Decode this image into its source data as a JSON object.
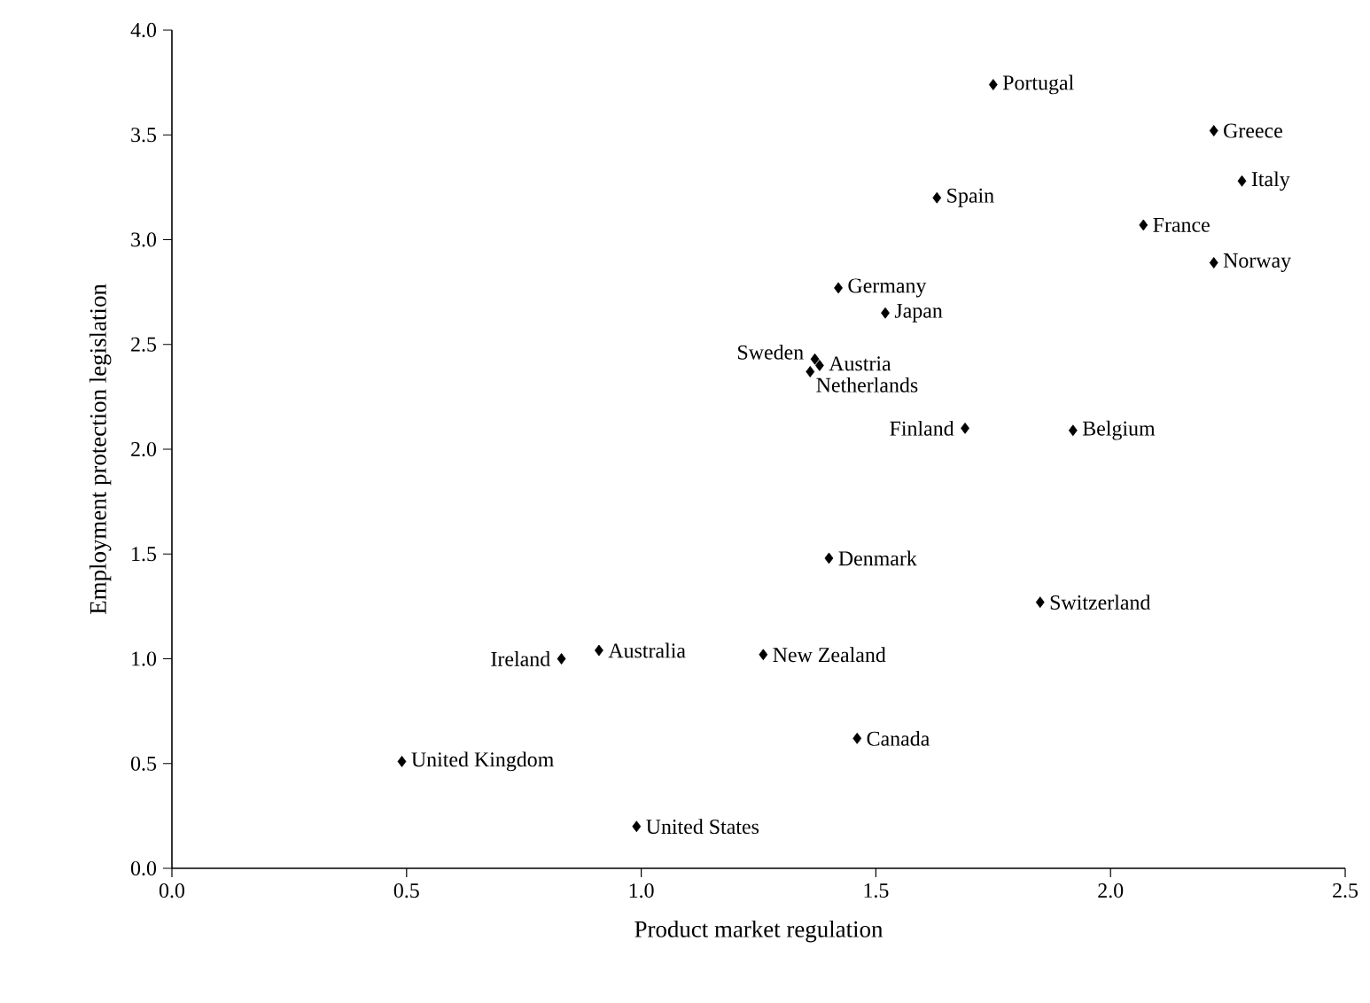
{
  "chart_data": {
    "type": "scatter",
    "xlabel": "Product market regulation",
    "ylabel": "Employment protection legislation",
    "x": [
      1.75,
      2.22,
      2.28,
      1.63,
      2.07,
      2.22,
      1.42,
      1.52,
      1.37,
      1.38,
      1.36,
      1.69,
      1.92,
      1.4,
      1.85,
      0.83,
      0.91,
      1.26,
      1.46,
      0.49,
      0.99
    ],
    "values": [
      3.74,
      3.52,
      3.28,
      3.2,
      3.07,
      2.89,
      2.77,
      2.65,
      2.43,
      2.4,
      2.37,
      2.1,
      2.09,
      1.48,
      1.27,
      1.0,
      1.04,
      1.02,
      0.62,
      0.51,
      0.2
    ],
    "color": "#000000",
    "marker": "diamond",
    "grid": false,
    "xlim": [
      0,
      2.5
    ],
    "ylim": [
      0,
      4
    ],
    "xticks": [
      {
        "value": 0,
        "label": "0.0"
      },
      0.5,
      {
        "value": 1,
        "label": "1.0"
      },
      1.5,
      {
        "value": 2,
        "label": "2.0"
      },
      2.5
    ],
    "yticks": [
      {
        "value": 0,
        "label": "0.0"
      },
      0.5,
      {
        "value": 1,
        "label": "1.0"
      },
      1.5,
      {
        "value": 2,
        "label": "2.0"
      },
      2.5,
      {
        "value": 3,
        "label": "3.0"
      },
      3.5,
      {
        "value": 4,
        "label": "4.0"
      }
    ],
    "annotations": [
      {
        "text": "Portugal",
        "x": 1.75,
        "y": 3.74
      },
      {
        "text": "Greece",
        "x": 2.22,
        "y": 3.52
      },
      {
        "text": "Italy",
        "x": 2.28,
        "y": 3.28
      },
      {
        "text": "Spain",
        "x": 1.63,
        "y": 3.2
      },
      {
        "text": "France",
        "x": 2.07,
        "y": 3.07
      },
      {
        "text": "Norway",
        "x": 2.22,
        "y": 2.89
      },
      {
        "text": "Germany",
        "x": 1.42,
        "y": 2.77
      },
      {
        "text": "Japan",
        "x": 1.52,
        "y": 2.65
      },
      {
        "text": "Sweden",
        "x": 1.37,
        "y": 2.43
      },
      {
        "text": "Austria",
        "x": 1.38,
        "y": 2.4
      },
      {
        "text": "Netherlands",
        "x": 1.36,
        "y": 2.37
      },
      {
        "text": "Finland",
        "x": 1.69,
        "y": 2.1
      },
      {
        "text": "Belgium",
        "x": 1.92,
        "y": 2.09
      },
      {
        "text": "Denmark",
        "x": 1.4,
        "y": 1.48
      },
      {
        "text": "Switzerland",
        "x": 1.85,
        "y": 1.27
      },
      {
        "text": "Ireland",
        "x": 0.83,
        "y": 1.0
      },
      {
        "text": "Australia",
        "x": 0.91,
        "y": 1.04
      },
      {
        "text": "New Zealand",
        "x": 1.26,
        "y": 1.02
      },
      {
        "text": "Canada",
        "x": 1.46,
        "y": 0.62
      },
      {
        "text": "United Kingdom",
        "x": 0.49,
        "y": 0.51
      },
      {
        "text": "United States",
        "x": 0.99,
        "y": 0.2
      }
    ]
  }
}
